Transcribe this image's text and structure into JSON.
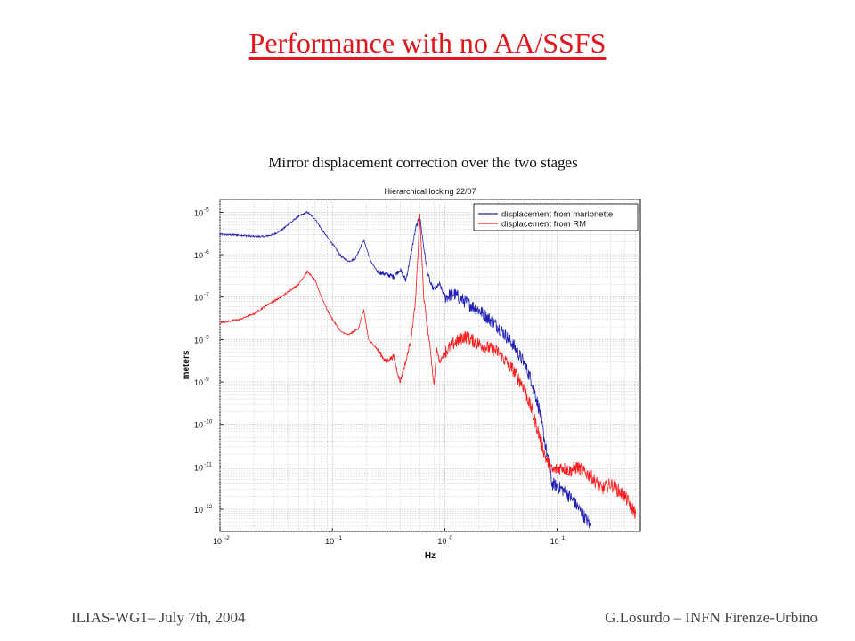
{
  "slide": {
    "title": "Performance with no AA/SSFS",
    "caption": "Mirror displacement correction over the two stages",
    "footer_left": "ILIAS-WG1– July 7th, 2004",
    "footer_right": "G.Losurdo – INFN Firenze-Urbino"
  },
  "colors": {
    "title": "#e0161c",
    "series_marionette": "#1f1fb4",
    "series_rm": "#ff1a1a",
    "grid": "#bdbdbd"
  },
  "chart_data": {
    "type": "line",
    "title": "Hierarchical locking 22/07",
    "xlabel": "Hz",
    "ylabel": "meters",
    "x_scale": "log",
    "y_scale": "log",
    "xlim": [
      0.01,
      55
    ],
    "ylim": [
      3e-13,
      2e-05
    ],
    "grid": true,
    "legend_position": "top-right",
    "x_ticks": [
      {
        "value": 0.01,
        "base": "10",
        "exp": "-2"
      },
      {
        "value": 0.1,
        "base": "10",
        "exp": "-1"
      },
      {
        "value": 1,
        "base": "10",
        "exp": "0"
      },
      {
        "value": 10,
        "base": "10",
        "exp": "1"
      }
    ],
    "y_ticks": [
      {
        "value": 1e-05,
        "base": "10",
        "exp": "-5"
      },
      {
        "value": 1e-06,
        "base": "10",
        "exp": "-6"
      },
      {
        "value": 1e-07,
        "base": "10",
        "exp": "-7"
      },
      {
        "value": 1e-08,
        "base": "10",
        "exp": "-8"
      },
      {
        "value": 1e-09,
        "base": "10",
        "exp": "-9"
      },
      {
        "value": 1e-10,
        "base": "10",
        "exp": "-10"
      },
      {
        "value": 1e-11,
        "base": "10",
        "exp": "-11"
      },
      {
        "value": 1e-12,
        "base": "10",
        "exp": "-12"
      }
    ],
    "series": [
      {
        "name": "displacement from marionette",
        "color": "#1f1fb4",
        "points": [
          [
            0.01,
            3e-06
          ],
          [
            0.015,
            2.9e-06
          ],
          [
            0.02,
            2.7e-06
          ],
          [
            0.025,
            2.7e-06
          ],
          [
            0.03,
            3e-06
          ],
          [
            0.035,
            3.7e-06
          ],
          [
            0.04,
            5e-06
          ],
          [
            0.05,
            8e-06
          ],
          [
            0.06,
            1e-05
          ],
          [
            0.07,
            7e-06
          ],
          [
            0.08,
            4e-06
          ],
          [
            0.09,
            2.6e-06
          ],
          [
            0.1,
            1.8e-06
          ],
          [
            0.12,
            9e-07
          ],
          [
            0.14,
            7e-07
          ],
          [
            0.16,
            8e-07
          ],
          [
            0.19,
            2.2e-06
          ],
          [
            0.22,
            7e-07
          ],
          [
            0.25,
            4e-07
          ],
          [
            0.3,
            3.5e-07
          ],
          [
            0.35,
            3e-07
          ],
          [
            0.4,
            4.5e-07
          ],
          [
            0.45,
            2.5e-07
          ],
          [
            0.5,
            1e-06
          ],
          [
            0.55,
            4e-06
          ],
          [
            0.6,
            8e-06
          ],
          [
            0.65,
            1.5e-06
          ],
          [
            0.7,
            4e-07
          ],
          [
            0.75,
            2e-07
          ],
          [
            0.8,
            1.5e-07
          ],
          [
            0.9,
            2e-07
          ],
          [
            1,
            1e-07
          ],
          [
            1.2,
            1.2e-07
          ],
          [
            1.5,
            8e-08
          ],
          [
            2,
            5e-08
          ],
          [
            3,
            2e-08
          ],
          [
            4,
            8e-09
          ],
          [
            5,
            3e-09
          ],
          [
            6,
            1e-09
          ],
          [
            7,
            2e-10
          ],
          [
            8,
            2.5e-11
          ],
          [
            9,
            4e-12
          ],
          [
            11,
            3e-12
          ],
          [
            13,
            2e-12
          ],
          [
            15,
            1.2e-12
          ],
          [
            20,
            4e-13
          ]
        ]
      },
      {
        "name": "displacement from RM",
        "color": "#ff1a1a",
        "points": [
          [
            0.01,
            2.5e-08
          ],
          [
            0.015,
            3e-08
          ],
          [
            0.02,
            4e-08
          ],
          [
            0.025,
            6e-08
          ],
          [
            0.03,
            8e-08
          ],
          [
            0.035,
            1e-07
          ],
          [
            0.04,
            1.3e-07
          ],
          [
            0.05,
            2e-07
          ],
          [
            0.06,
            4e-07
          ],
          [
            0.07,
            2.5e-07
          ],
          [
            0.08,
            1e-07
          ],
          [
            0.09,
            5e-08
          ],
          [
            0.1,
            3e-08
          ],
          [
            0.12,
            1.5e-08
          ],
          [
            0.14,
            1.3e-08
          ],
          [
            0.17,
            1.8e-08
          ],
          [
            0.19,
            5e-08
          ],
          [
            0.21,
            1e-08
          ],
          [
            0.25,
            6e-09
          ],
          [
            0.3,
            3e-09
          ],
          [
            0.35,
            4e-09
          ],
          [
            0.4,
            1e-09
          ],
          [
            0.45,
            3e-09
          ],
          [
            0.5,
            1e-08
          ],
          [
            0.55,
            8e-08
          ],
          [
            0.6,
            8e-06
          ],
          [
            0.65,
            1e-07
          ],
          [
            0.7,
            2e-08
          ],
          [
            0.75,
            5e-09
          ],
          [
            0.8,
            8e-10
          ],
          [
            0.85,
            6e-09
          ],
          [
            0.9,
            3e-09
          ],
          [
            1,
            5e-09
          ],
          [
            1.2,
            8e-09
          ],
          [
            1.5,
            1.2e-08
          ],
          [
            2,
            8e-09
          ],
          [
            3,
            5e-09
          ],
          [
            4,
            2e-09
          ],
          [
            5,
            8e-10
          ],
          [
            6,
            2e-10
          ],
          [
            7,
            5e-11
          ],
          [
            8,
            1.5e-11
          ],
          [
            9,
            8e-12
          ],
          [
            11,
            1e-11
          ],
          [
            13,
            8e-12
          ],
          [
            15,
            1e-11
          ],
          [
            20,
            6e-12
          ],
          [
            25,
            3e-12
          ],
          [
            30,
            4e-12
          ],
          [
            40,
            2e-12
          ],
          [
            50,
            8e-13
          ]
        ]
      }
    ]
  }
}
